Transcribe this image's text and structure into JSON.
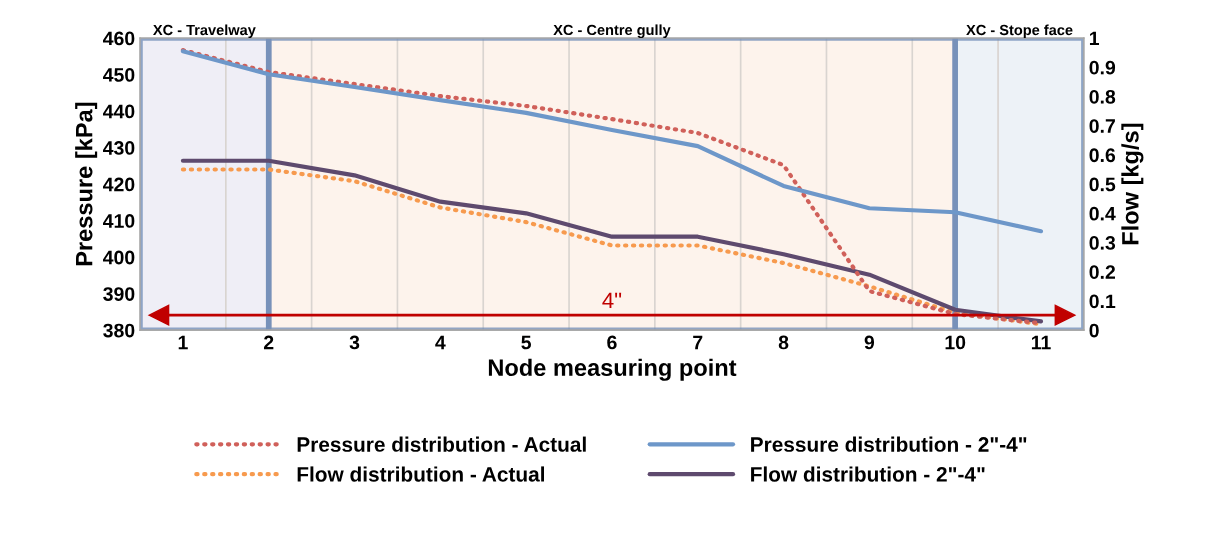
{
  "chart_data": {
    "type": "line",
    "xlabel": "Node measuring point",
    "ylabel": "Pressure [kPa]",
    "y2label": "Flow [kg/s]",
    "x": [
      1,
      2,
      3,
      4,
      5,
      6,
      7,
      8,
      9,
      10,
      11
    ],
    "xlim": [
      0.5,
      11.5
    ],
    "xticks": [
      1,
      2,
      3,
      4,
      5,
      6,
      7,
      8,
      9,
      10,
      11
    ],
    "ylim": [
      380,
      460
    ],
    "yticks": [
      380,
      390,
      400,
      410,
      420,
      430,
      440,
      450,
      460
    ],
    "y2lim": [
      0,
      1
    ],
    "y2ticks": [
      0,
      0.1,
      0.2,
      0.3,
      0.4,
      0.5,
      0.6,
      0.7,
      0.8,
      0.9,
      1
    ],
    "series": [
      {
        "name": "Pressure distribution - Actual",
        "color": "#d0605a",
        "line_style": "dotted",
        "values": [
          456.7,
          450.7,
          447.4,
          444.1,
          441.4,
          437.8,
          434.0,
          425.2,
          390.7,
          384.4,
          381.9
        ]
      },
      {
        "name": "Pressure distribution - 2\"-4\"",
        "color": "#6d97c9",
        "line_style": "solid",
        "values": [
          456.4,
          450.1,
          446.6,
          443.0,
          439.5,
          434.8,
          430.4,
          419.5,
          413.4,
          412.3,
          407.1
        ]
      },
      {
        "name": "Flow distribution - Actual",
        "color": "#f79a4e",
        "line_style": "dotted",
        "axis": "y2",
        "values": [
          0.55,
          0.55,
          0.51,
          0.42,
          0.37,
          0.29,
          0.29,
          0.23,
          0.15,
          0.06,
          0.02
        ]
      },
      {
        "name": "Flow distribution - 2\"-4\"",
        "color": "#5e4a6e",
        "line_style": "solid",
        "axis": "y2",
        "values": [
          0.58,
          0.58,
          0.53,
          0.44,
          0.4,
          0.32,
          0.32,
          0.26,
          0.19,
          0.07,
          0.03
        ]
      }
    ],
    "bands": [
      {
        "axis": "x",
        "from": 0.5,
        "to": 2,
        "label": "XC - Travelway",
        "color": "#efeef6"
      },
      {
        "axis": "x",
        "from": 2,
        "to": 10,
        "label": "XC - Centre gully",
        "color": "#fdf3ec"
      },
      {
        "axis": "x",
        "from": 10,
        "to": 11.5,
        "label": "XC - Stope face",
        "color": "#edf2f7"
      }
    ],
    "ref_lines": [
      {
        "axis": "y",
        "value": 384.1,
        "color": "#c00000"
      }
    ],
    "annotations": [
      "4\""
    ],
    "grid": true,
    "legend": "bottom",
    "marker": "none"
  }
}
